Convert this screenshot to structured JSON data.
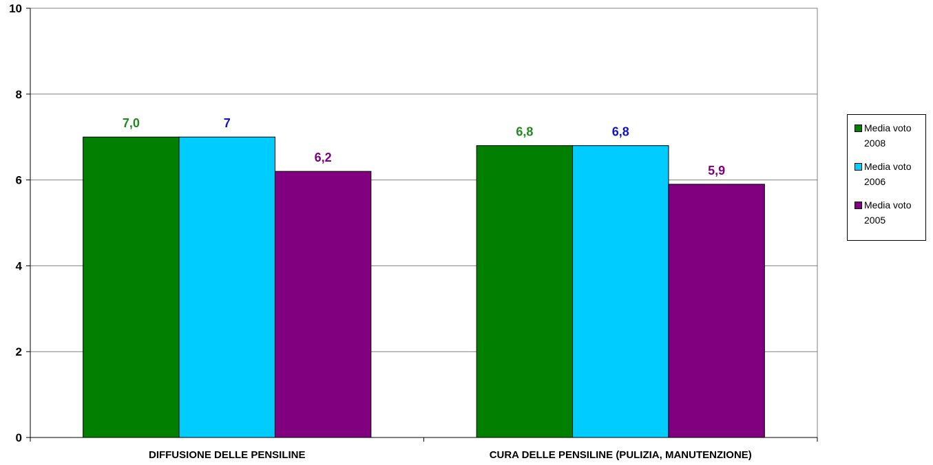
{
  "chart_data": {
    "type": "bar",
    "categories": [
      "DIFFUSIONE DELLE PENSILINE",
      "CURA DELLE PENSILINE (PULIZIA, MANUTENZIONE)"
    ],
    "series": [
      {
        "name": "Media voto 2008",
        "values": [
          7.0,
          6.8
        ],
        "labels": [
          "7,0",
          "6,8"
        ],
        "color": "#007f00",
        "label_color": "#1f8a1f"
      },
      {
        "name": "Media voto 2006",
        "values": [
          7.0,
          6.8
        ],
        "labels": [
          "7",
          "6,8"
        ],
        "color": "#00ccff",
        "label_color": "#1010d0"
      },
      {
        "name": "Media voto 2005",
        "values": [
          6.2,
          5.9
        ],
        "labels": [
          "6,2",
          "5,9"
        ],
        "color": "#800080",
        "label_color": "#800080"
      }
    ],
    "ylim": [
      0,
      10
    ],
    "yticks": [
      "0",
      "2",
      "4",
      "6",
      "8",
      "10"
    ],
    "ytick_values": [
      0,
      2,
      4,
      6,
      8,
      10
    ],
    "grid": true,
    "legend_position": "right",
    "title": "",
    "xlabel": "",
    "ylabel": ""
  },
  "legend": {
    "items": [
      {
        "line1": "Media voto",
        "line2": "2008"
      },
      {
        "line1": "Media voto",
        "line2": "2006"
      },
      {
        "line1": "Media voto",
        "line2": "2005"
      }
    ]
  }
}
